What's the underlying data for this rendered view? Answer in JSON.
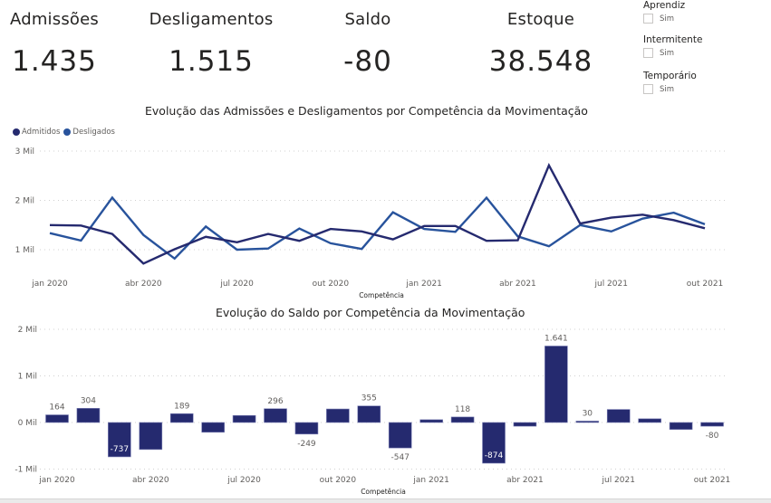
{
  "kpis": [
    {
      "label": "Admissões",
      "value": "1.435"
    },
    {
      "label": "Desligamentos",
      "value": "1.515"
    },
    {
      "label": "Saldo",
      "value": "-80"
    },
    {
      "label": "Estoque",
      "value": "38.548"
    }
  ],
  "slicers": [
    {
      "title": "Aprendiz",
      "option": "Sim",
      "checked": false
    },
    {
      "title": "Intermitente",
      "option": "Sim",
      "checked": false
    },
    {
      "title": "Temporário",
      "option": "Sim",
      "checked": false
    }
  ],
  "colors": {
    "admitidos": "#252a6f",
    "desligados": "#28539c",
    "bar": "#252a6f",
    "grid": "#d0d0d0",
    "axis_text": "#605e5c"
  },
  "chart_data": [
    {
      "type": "line",
      "title": "Evolução das Admissões e Desligamentos por Competência da Movimentação",
      "xlabel": "Competência",
      "ylabel": "",
      "legend": "top-left",
      "grid": true,
      "ylim": [
        500,
        3000
      ],
      "yticks": [
        1000,
        2000,
        3000
      ],
      "ytick_labels": [
        "1 Mil",
        "2 Mil",
        "3 Mil"
      ],
      "x": [
        "jan 2020",
        "fev 2020",
        "mar 2020",
        "abr 2020",
        "mai 2020",
        "jun 2020",
        "jul 2020",
        "ago 2020",
        "set 2020",
        "out 2020",
        "nov 2020",
        "dez 2020",
        "jan 2021",
        "fev 2021",
        "mar 2021",
        "abr 2021",
        "mai 2021",
        "jun 2021",
        "jul 2021",
        "ago 2021",
        "set 2021",
        "out 2021"
      ],
      "xtick_labels": [
        {
          "index": 0,
          "label": "jan 2020"
        },
        {
          "index": 3,
          "label": "abr 2020"
        },
        {
          "index": 6,
          "label": "jul 2020"
        },
        {
          "index": 9,
          "label": "out 2020"
        },
        {
          "index": 12,
          "label": "jan 2021"
        },
        {
          "index": 15,
          "label": "abr 2021"
        },
        {
          "index": 18,
          "label": "jul 2021"
        },
        {
          "index": 21,
          "label": "out 2021"
        }
      ],
      "series": [
        {
          "name": "Admitidos",
          "values": [
            1500,
            1490,
            1320,
            720,
            1010,
            1260,
            1150,
            1320,
            1180,
            1420,
            1370,
            1210,
            1480,
            1480,
            1180,
            1190,
            2710,
            1530,
            1650,
            1710,
            1600,
            1435
          ]
        },
        {
          "name": "Desligados",
          "values": [
            1336,
            1186,
            2057,
            1300,
            821,
            1470,
            1000,
            1024,
            1429,
            1130,
            1015,
            1757,
            1420,
            1362,
            2054,
            1270,
            1069,
            1500,
            1370,
            1630,
            1750,
            1515
          ]
        }
      ]
    },
    {
      "type": "bar",
      "title": "Evolução do Saldo por Competência da Movimentação",
      "xlabel": "Competência",
      "ylabel": "",
      "grid": true,
      "ylim": [
        -1000,
        2000
      ],
      "yticks": [
        -1000,
        0,
        1000,
        2000
      ],
      "ytick_labels": [
        "-1 Mil",
        "0 Mil",
        "1 Mil",
        "2 Mil"
      ],
      "categories": [
        "jan 2020",
        "fev 2020",
        "mar 2020",
        "abr 2020",
        "mai 2020",
        "jun 2020",
        "jul 2020",
        "ago 2020",
        "set 2020",
        "out 2020",
        "nov 2020",
        "dez 2020",
        "jan 2021",
        "fev 2021",
        "mar 2021",
        "abr 2021",
        "mai 2021",
        "jun 2021",
        "jul 2021",
        "ago 2021",
        "set 2021",
        "out 2021"
      ],
      "xtick_labels": [
        {
          "index": 0,
          "label": "jan 2020"
        },
        {
          "index": 3,
          "label": "abr 2020"
        },
        {
          "index": 6,
          "label": "jul 2020"
        },
        {
          "index": 9,
          "label": "out 2020"
        },
        {
          "index": 12,
          "label": "jan 2021"
        },
        {
          "index": 15,
          "label": "abr 2021"
        },
        {
          "index": 18,
          "label": "jul 2021"
        },
        {
          "index": 21,
          "label": "out 2021"
        }
      ],
      "values": [
        164,
        304,
        -737,
        -580,
        189,
        -210,
        150,
        296,
        -249,
        290,
        355,
        -547,
        60,
        118,
        -874,
        -80,
        1641,
        30,
        280,
        80,
        -150,
        -80
      ],
      "data_labels": [
        {
          "index": 0,
          "text": "164",
          "position": "above"
        },
        {
          "index": 1,
          "text": "304",
          "position": "above"
        },
        {
          "index": 2,
          "text": "-737",
          "position": "inside"
        },
        {
          "index": 4,
          "text": "189",
          "position": "above"
        },
        {
          "index": 7,
          "text": "296",
          "position": "above"
        },
        {
          "index": 8,
          "text": "-249",
          "position": "below"
        },
        {
          "index": 10,
          "text": "355",
          "position": "above"
        },
        {
          "index": 11,
          "text": "-547",
          "position": "below"
        },
        {
          "index": 13,
          "text": "118",
          "position": "above"
        },
        {
          "index": 14,
          "text": "-874",
          "position": "inside"
        },
        {
          "index": 16,
          "text": "1.641",
          "position": "above"
        },
        {
          "index": 17,
          "text": "30",
          "position": "above"
        },
        {
          "index": 21,
          "text": "-80",
          "position": "below"
        }
      ]
    }
  ]
}
